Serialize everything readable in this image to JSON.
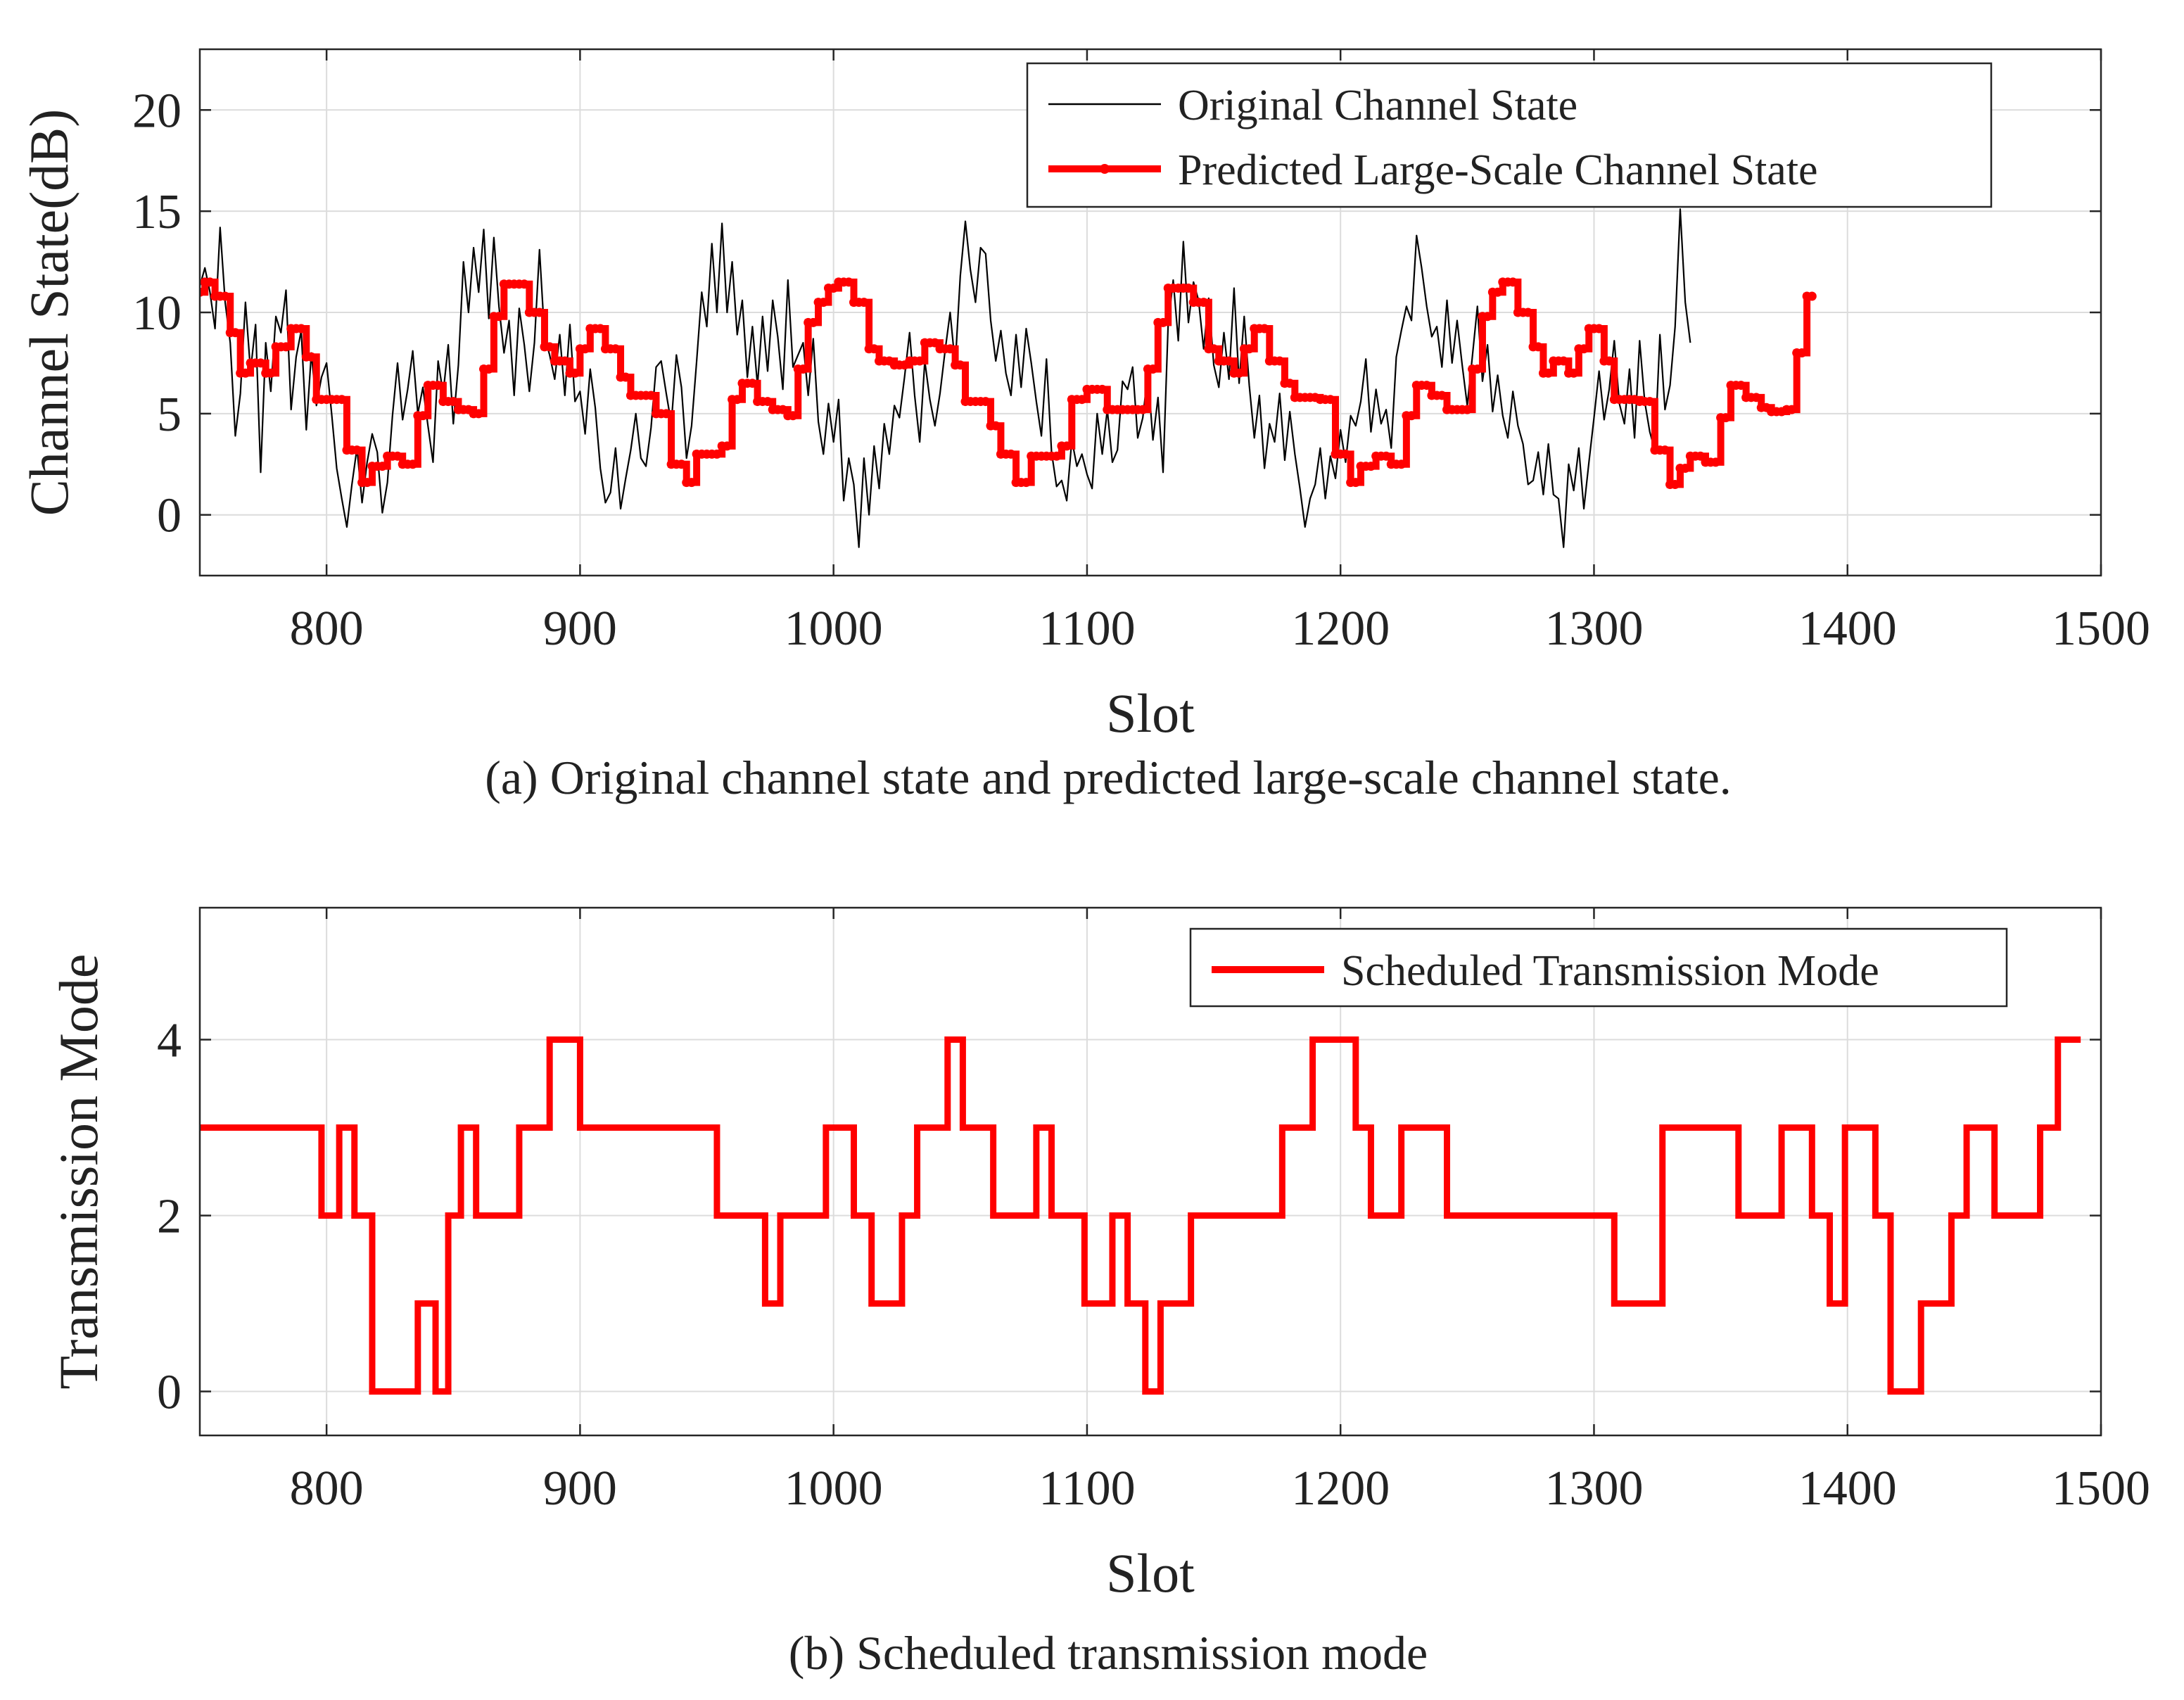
{
  "chart_data": [
    {
      "type": "line",
      "id": "a",
      "ylabel": "Channel State(dB)",
      "xlabel": "Slot",
      "caption": "(a) Original channel state and predicted large-scale channel state.",
      "xlim": [
        750,
        1500
      ],
      "ylim": [
        -3,
        23
      ],
      "xticks": [
        800,
        900,
        1000,
        1100,
        1200,
        1300,
        1400,
        1500
      ],
      "yticks": [
        0,
        5,
        10,
        15,
        20
      ],
      "grid": true,
      "legend_position": "top-right",
      "series": [
        {
          "name": "Original Channel State",
          "color": "#000000",
          "style": "thin-line",
          "x_start": 750,
          "x_step": 2,
          "values": [
            11.3,
            12.2,
            11.0,
            9.2,
            14.2,
            10.5,
            8.5,
            3.9,
            6.0,
            10.5,
            7.1,
            9.4,
            2.1,
            8.5,
            6.1,
            9.8,
            9.0,
            11.1,
            5.2,
            7.8,
            9.1,
            4.2,
            8.0,
            5.4,
            6.8,
            7.5,
            5.0,
            2.3,
            0.8,
            -0.6,
            1.5,
            3.3,
            0.6,
            2.6,
            4.0,
            3.1,
            0.1,
            1.6,
            4.9,
            7.5,
            4.7,
            6.2,
            8.1,
            5.0,
            6.3,
            4.4,
            2.6,
            7.6,
            6.0,
            8.4,
            4.5,
            7.4,
            12.5,
            10.0,
            13.2,
            11.0,
            14.1,
            9.7,
            13.7,
            10.3,
            8.0,
            9.6,
            5.9,
            10.2,
            8.4,
            6.1,
            8.5,
            13.1,
            8.8,
            7.9,
            6.7,
            8.9,
            5.9,
            9.4,
            5.6,
            6.1,
            4.0,
            7.2,
            5.3,
            2.3,
            0.6,
            1.1,
            3.3,
            0.3,
            1.8,
            3.2,
            5.0,
            2.8,
            2.4,
            4.3,
            7.3,
            7.6,
            6.0,
            4.5,
            7.9,
            6.3,
            2.8,
            4.4,
            7.6,
            11.0,
            9.3,
            13.4,
            10.0,
            14.4,
            10.0,
            12.5,
            8.9,
            10.6,
            6.8,
            9.3,
            6.4,
            9.8,
            7.1,
            10.6,
            8.8,
            6.2,
            11.6,
            7.3,
            7.9,
            8.5,
            5.9,
            8.7,
            4.6,
            3.0,
            5.5,
            3.6,
            5.7,
            0.7,
            2.8,
            1.5,
            -1.6,
            2.8,
            0.0,
            3.4,
            1.3,
            4.5,
            3.0,
            5.4,
            4.8,
            6.8,
            9.0,
            5.9,
            3.6,
            7.6,
            5.7,
            4.4,
            6.0,
            8.1,
            10.0,
            7.4,
            11.8,
            14.5,
            12.1,
            10.5,
            13.2,
            12.9,
            9.6,
            7.6,
            9.1,
            7.0,
            5.9,
            8.9,
            6.3,
            9.2,
            7.5,
            5.6,
            3.9,
            7.7,
            3.1,
            1.4,
            1.7,
            0.7,
            3.7,
            2.4,
            3.0,
            2.0,
            1.3,
            5.0,
            3.0,
            5.2,
            2.6,
            3.2,
            6.6,
            6.2,
            7.3,
            3.8,
            4.8,
            7.0,
            3.7,
            5.8,
            2.1,
            9.4,
            11.6,
            8.6,
            13.5,
            9.5,
            11.5,
            10.6,
            8.2,
            10.7,
            7.4,
            6.3,
            9.0,
            6.7,
            11.2,
            6.5,
            9.8,
            6.4,
            3.8,
            5.9,
            2.3,
            4.5,
            3.6,
            6.0,
            2.7,
            5.1,
            3.0,
            1.3,
            -0.6,
            0.8,
            1.5,
            3.3,
            0.8,
            2.9,
            1.8,
            4.2,
            2.6,
            4.9,
            4.4,
            5.6,
            7.7,
            4.1,
            6.2,
            4.5,
            5.2,
            3.3,
            7.8,
            9.1,
            10.3,
            9.6,
            13.8,
            12.2,
            10.3,
            8.8,
            9.3,
            7.3,
            10.6,
            7.5,
            9.6,
            7.4,
            5.4,
            7.8,
            10.3,
            6.6,
            8.4,
            5.1,
            6.9,
            4.9,
            3.8,
            6.1,
            4.4,
            3.5,
            1.5,
            1.7,
            3.1,
            1.0,
            3.5,
            1.0,
            0.8,
            -1.6,
            2.5,
            1.2,
            3.3,
            0.3,
            2.6,
            4.8,
            7.1,
            4.7,
            6.2,
            8.6,
            5.5,
            4.5,
            7.2,
            3.8,
            8.6,
            5.6,
            4.1,
            3.2,
            8.9,
            5.2,
            6.4,
            9.3,
            15.1,
            10.5,
            8.5
          ]
        },
        {
          "name": "Predicted Large-Scale Channel State",
          "color": "#ff0000",
          "style": "thick-step-with-markers",
          "x_start": 750,
          "x_step": 2,
          "values": [
            11.0,
            11.5,
            11.5,
            10.8,
            10.8,
            10.8,
            9.0,
            9.0,
            7.0,
            7.0,
            7.5,
            7.5,
            7.5,
            7.0,
            7.0,
            8.3,
            8.3,
            8.3,
            9.2,
            9.2,
            9.2,
            7.8,
            7.8,
            5.7,
            5.7,
            5.7,
            5.7,
            5.7,
            5.7,
            3.2,
            3.2,
            3.2,
            1.6,
            1.6,
            2.4,
            2.4,
            2.4,
            2.9,
            2.9,
            2.9,
            2.5,
            2.5,
            2.5,
            4.9,
            4.9,
            6.4,
            6.4,
            6.4,
            5.6,
            5.6,
            5.6,
            5.2,
            5.2,
            5.2,
            5.0,
            5.0,
            7.2,
            7.2,
            9.8,
            9.8,
            11.4,
            11.4,
            11.4,
            11.4,
            11.4,
            10.0,
            10.0,
            10.0,
            8.3,
            8.3,
            7.6,
            7.6,
            7.6,
            7.0,
            7.0,
            8.2,
            8.2,
            9.2,
            9.2,
            9.2,
            8.2,
            8.2,
            8.2,
            6.8,
            6.8,
            5.9,
            5.9,
            5.9,
            5.9,
            5.9,
            5.0,
            5.0,
            5.0,
            2.5,
            2.5,
            2.5,
            1.6,
            1.6,
            3.0,
            3.0,
            3.0,
            3.0,
            3.0,
            3.4,
            3.4,
            5.7,
            5.7,
            6.5,
            6.5,
            6.5,
            5.6,
            5.6,
            5.6,
            5.2,
            5.2,
            5.2,
            4.9,
            4.9,
            7.2,
            7.2,
            9.5,
            9.5,
            10.5,
            10.5,
            11.2,
            11.2,
            11.5,
            11.5,
            11.5,
            10.5,
            10.5,
            10.5,
            8.2,
            8.2,
            7.6,
            7.6,
            7.6,
            7.4,
            7.4,
            7.4,
            7.6,
            7.6,
            7.6,
            8.5,
            8.5,
            8.5,
            8.2,
            8.2,
            8.2,
            7.4,
            7.4,
            5.6,
            5.6,
            5.6,
            5.6,
            5.6,
            4.4,
            4.4,
            3.0,
            3.0,
            3.0,
            1.6,
            1.6,
            1.6,
            2.9,
            2.9,
            2.9,
            2.9,
            2.9,
            2.9,
            3.4,
            3.4,
            5.7,
            5.7,
            5.7,
            6.2,
            6.2,
            6.2,
            6.2,
            5.2,
            5.2,
            5.2,
            5.2,
            5.2,
            5.2,
            5.2,
            5.2,
            7.2,
            7.2,
            9.5,
            9.5,
            11.2,
            11.2,
            11.2,
            11.2,
            11.2,
            10.5,
            10.5,
            10.5,
            8.2,
            8.2,
            7.6,
            7.6,
            7.6,
            7.0,
            7.0,
            8.2,
            8.2,
            9.2,
            9.2,
            9.2,
            7.6,
            7.6,
            7.6,
            6.5,
            6.5,
            5.8,
            5.8,
            5.8,
            5.8,
            5.8,
            5.7,
            5.7,
            5.7,
            3.0,
            3.0,
            3.0,
            1.6,
            1.6,
            2.4,
            2.4,
            2.4,
            2.9,
            2.9,
            2.9,
            2.5,
            2.5,
            2.5,
            4.9,
            4.9,
            6.4,
            6.4,
            6.4,
            5.9,
            5.9,
            5.9,
            5.2,
            5.2,
            5.2,
            5.2,
            5.2,
            7.2,
            7.2,
            9.8,
            9.8,
            11.0,
            11.0,
            11.5,
            11.5,
            11.5,
            10.0,
            10.0,
            10.0,
            8.3,
            8.3,
            7.0,
            7.0,
            7.6,
            7.6,
            7.6,
            7.0,
            7.0,
            8.2,
            8.2,
            9.2,
            9.2,
            9.2,
            7.6,
            7.6,
            5.7,
            5.7,
            5.7,
            5.7,
            5.7,
            5.6,
            5.6,
            5.6,
            3.2,
            3.2,
            3.2,
            1.5,
            1.5,
            2.3,
            2.3,
            2.9,
            2.9,
            2.9,
            2.6,
            2.6,
            2.6,
            4.8,
            4.8,
            6.4,
            6.4,
            6.4,
            5.8,
            5.8,
            5.8,
            5.3,
            5.3,
            5.1,
            5.1,
            5.1,
            5.2,
            5.2,
            8.0,
            8.0,
            10.8,
            10.8
          ]
        }
      ]
    },
    {
      "type": "line",
      "id": "b",
      "ylabel": "Transmission Mode",
      "xlabel": "Slot",
      "caption": "(b) Scheduled transmission mode",
      "xlim": [
        750,
        1500
      ],
      "ylim": [
        -0.5,
        5.5
      ],
      "xticks": [
        800,
        900,
        1000,
        1100,
        1200,
        1300,
        1400,
        1500
      ],
      "yticks": [
        0,
        2,
        4
      ],
      "grid": true,
      "legend_position": "top-right",
      "series": [
        {
          "name": "Scheduled Transmission Mode",
          "color": "#ff0000",
          "style": "thick-step",
          "steps": [
            [
              750,
              3
            ],
            [
              798,
              2
            ],
            [
              805,
              3
            ],
            [
              811,
              2
            ],
            [
              818,
              0
            ],
            [
              836,
              1
            ],
            [
              843,
              0
            ],
            [
              848,
              2
            ],
            [
              853,
              3
            ],
            [
              859,
              2
            ],
            [
              876,
              3
            ],
            [
              888,
              4
            ],
            [
              900,
              3
            ],
            [
              954,
              2
            ],
            [
              973,
              1
            ],
            [
              979,
              2
            ],
            [
              997,
              3
            ],
            [
              1008,
              2
            ],
            [
              1015,
              1
            ],
            [
              1027,
              2
            ],
            [
              1033,
              3
            ],
            [
              1045,
              4
            ],
            [
              1051,
              3
            ],
            [
              1063,
              2
            ],
            [
              1080,
              3
            ],
            [
              1086,
              2
            ],
            [
              1099,
              1
            ],
            [
              1110,
              2
            ],
            [
              1116,
              1
            ],
            [
              1123,
              0
            ],
            [
              1129,
              1
            ],
            [
              1141,
              2
            ],
            [
              1177,
              3
            ],
            [
              1189,
              4
            ],
            [
              1206,
              3
            ],
            [
              1212,
              2
            ],
            [
              1224,
              3
            ],
            [
              1242,
              2
            ],
            [
              1308,
              1
            ],
            [
              1327,
              3
            ],
            [
              1357,
              2
            ],
            [
              1374,
              3
            ],
            [
              1386,
              2
            ],
            [
              1393,
              1
            ],
            [
              1399,
              3
            ],
            [
              1411,
              2
            ],
            [
              1417,
              0
            ],
            [
              1429,
              1
            ],
            [
              1441,
              2
            ],
            [
              1447,
              3
            ],
            [
              1458,
              2
            ],
            [
              1476,
              3
            ],
            [
              1483,
              4
            ],
            [
              1492,
              4
            ]
          ]
        }
      ]
    }
  ]
}
